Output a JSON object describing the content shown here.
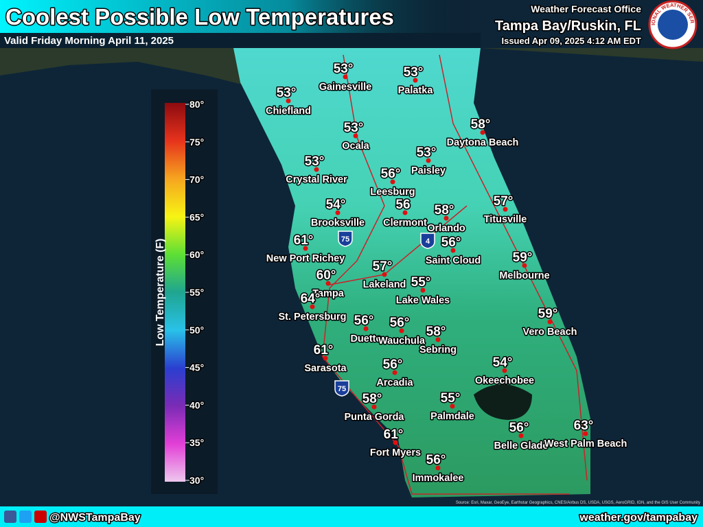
{
  "header": {
    "title": "Coolest Possible Low Temperatures",
    "subtitle": "Valid Friday Morning April 11, 2025",
    "office_label": "Weather Forecast Office",
    "office_name": "Tampa Bay/Ruskin, FL",
    "issued": "Issued Apr 09, 2025 4:12 AM EDT",
    "logo_text": "NATIONAL WEATHER SERVICE"
  },
  "legend": {
    "title": "Low Temperature (F)",
    "ticks": [
      "80°",
      "75°",
      "70°",
      "65°",
      "60°",
      "55°",
      "50°",
      "45°",
      "40°",
      "35°",
      "30°"
    ]
  },
  "cities": [
    {
      "name": "Gainesville",
      "temp": "53°"
    },
    {
      "name": "Palatka",
      "temp": "53°"
    },
    {
      "name": "Chiefland",
      "temp": "53°"
    },
    {
      "name": "Ocala",
      "temp": "53°"
    },
    {
      "name": "Daytona Beach",
      "temp": "58°"
    },
    {
      "name": "Paisley",
      "temp": "53°"
    },
    {
      "name": "Crystal River",
      "temp": "53°"
    },
    {
      "name": "Leesburg",
      "temp": "56°"
    },
    {
      "name": "Clermont",
      "temp": "56"
    },
    {
      "name": "Brooksville",
      "temp": "54°"
    },
    {
      "name": "Orlando",
      "temp": "58°"
    },
    {
      "name": "Titusville",
      "temp": "57°"
    },
    {
      "name": "Saint Cloud",
      "temp": "56°"
    },
    {
      "name": "New Port Richey",
      "temp": "61°"
    },
    {
      "name": "Lakeland",
      "temp": "57°"
    },
    {
      "name": "Melbourne",
      "temp": "59°"
    },
    {
      "name": "Tampa",
      "temp": "60°"
    },
    {
      "name": "Lake Wales",
      "temp": "55°"
    },
    {
      "name": "St. Petersburg",
      "temp": "64°"
    },
    {
      "name": "Vero Beach",
      "temp": "59°"
    },
    {
      "name": "Duette",
      "temp": "56°"
    },
    {
      "name": "Wauchula",
      "temp": "56°"
    },
    {
      "name": "Sebring",
      "temp": "58°"
    },
    {
      "name": "Sarasota",
      "temp": "61°"
    },
    {
      "name": "Okeechobee",
      "temp": "54°"
    },
    {
      "name": "Arcadia",
      "temp": "56°"
    },
    {
      "name": "Punta Gorda",
      "temp": "58°"
    },
    {
      "name": "Palmdale",
      "temp": "55°"
    },
    {
      "name": "Belle Glade",
      "temp": "56°"
    },
    {
      "name": "West Palm Beach",
      "temp": "63°"
    },
    {
      "name": "Fort Myers",
      "temp": "61°"
    },
    {
      "name": "Immokalee",
      "temp": "56°"
    }
  ],
  "shields": [
    "75",
    "4",
    "75"
  ],
  "attribution": "Source: Esri, Maxar, GeoEye, Earthstar Geographics, CNES/Airbus DS, USDA, USGS, AeroGRID, IGN, and the GIS User Community",
  "footer": {
    "social": "@NWSTampaBay",
    "website": "weather.gov/tampabay"
  }
}
